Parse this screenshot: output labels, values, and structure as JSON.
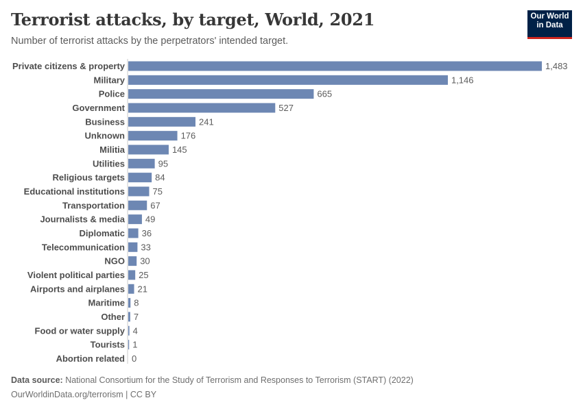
{
  "header": {
    "title": "Terrorist attacks, by target, World, 2021",
    "subtitle": "Number of terrorist attacks by the perpetrators' intended target.",
    "logo_line1": "Our World",
    "logo_line2": "in Data"
  },
  "footer": {
    "source_label": "Data source:",
    "source_text": " National Consortium for the Study of Terrorism and Responses to Terrorism (START) (2022)",
    "link_text": "OurWorldinData.org/terrorism | CC BY"
  },
  "colors": {
    "bar": "#6d87b3",
    "axis": "#c8c8c8",
    "logo_bg": "#002147",
    "logo_accent": "#ce261e"
  },
  "chart_data": {
    "type": "bar",
    "orientation": "horizontal",
    "title": "Terrorist attacks, by target, World, 2021",
    "subtitle": "Number of terrorist attacks by the perpetrators' intended target.",
    "xlabel": "",
    "ylabel": "",
    "grid": false,
    "xlim": [
      0,
      1483
    ],
    "categories": [
      "Private citizens & property",
      "Military",
      "Police",
      "Government",
      "Business",
      "Unknown",
      "Militia",
      "Utilities",
      "Religious targets",
      "Educational institutions",
      "Transportation",
      "Journalists & media",
      "Diplomatic",
      "Telecommunication",
      "NGO",
      "Violent political parties",
      "Airports and airplanes",
      "Maritime",
      "Other",
      "Food or water supply",
      "Tourists",
      "Abortion related"
    ],
    "values": [
      1483,
      1146,
      665,
      527,
      241,
      176,
      145,
      95,
      84,
      75,
      67,
      49,
      36,
      33,
      30,
      25,
      21,
      8,
      7,
      4,
      1,
      0
    ],
    "value_labels": [
      "1,483",
      "1,146",
      "665",
      "527",
      "241",
      "176",
      "145",
      "95",
      "84",
      "75",
      "67",
      "49",
      "36",
      "33",
      "30",
      "25",
      "21",
      "8",
      "7",
      "4",
      "1",
      "0"
    ]
  }
}
